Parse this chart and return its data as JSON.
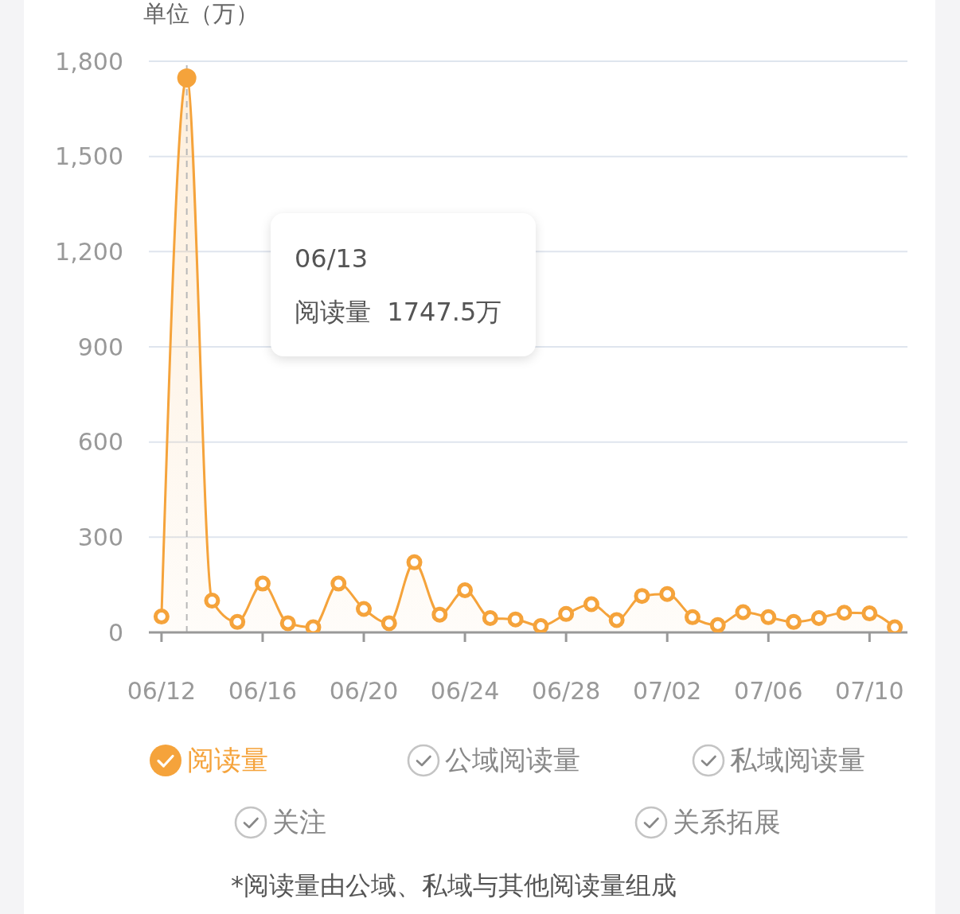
{
  "chart_data": {
    "type": "area",
    "ylabel": "单位（万）",
    "x": [
      "--06-12",
      "--06-13",
      "--06-14",
      "--06-15",
      "--06-16",
      "--06-17",
      "--06-18",
      "--06-19",
      "--06-20",
      "--06-21",
      "--06-22",
      "--06-23",
      "--06-24",
      "--06-25",
      "--06-26",
      "--06-27",
      "--06-28",
      "--06-29",
      "--06-30",
      "--07-01",
      "--07-02",
      "--07-03",
      "--07-04",
      "--07-05",
      "--07-06",
      "--07-07",
      "--07-08",
      "--07-09",
      "--07-10",
      "--07-11"
    ],
    "series": [
      {
        "name": "阅读量",
        "color": "#f5a33b",
        "values": [
          50,
          1747.5,
          100,
          33,
          154,
          29,
          16,
          154,
          74,
          29,
          221,
          56,
          133,
          45,
          41,
          20,
          58,
          89,
          39,
          115,
          121,
          48,
          23,
          64,
          48,
          33,
          45,
          62,
          60,
          16
        ]
      },
      {
        "name": "公域阅读量",
        "values": [
          null,
          null,
          null,
          null,
          null,
          null,
          null,
          null,
          null,
          null,
          null,
          null,
          null,
          null,
          null,
          null,
          null,
          null,
          null,
          null,
          null,
          null,
          null,
          null,
          null,
          null,
          null,
          null,
          null,
          null
        ]
      },
      {
        "name": "私域阅读量",
        "values": [
          null,
          null,
          null,
          null,
          null,
          null,
          null,
          null,
          null,
          null,
          null,
          null,
          null,
          null,
          null,
          null,
          null,
          null,
          null,
          null,
          null,
          null,
          null,
          null,
          null,
          null,
          null,
          null,
          null,
          null
        ]
      },
      {
        "name": "关注",
        "values": [
          null,
          null,
          null,
          null,
          null,
          null,
          null,
          null,
          null,
          null,
          null,
          null,
          null,
          null,
          null,
          null,
          null,
          null,
          null,
          null,
          null,
          null,
          null,
          null,
          null,
          null,
          null,
          null,
          null,
          null
        ]
      },
      {
        "name": "关系拓展",
        "values": [
          null,
          null,
          null,
          null,
          null,
          null,
          null,
          null,
          null,
          null,
          null,
          null,
          null,
          null,
          null,
          null,
          null,
          null,
          null,
          null,
          null,
          null,
          null,
          null,
          null,
          null,
          null,
          null,
          null,
          null
        ]
      }
    ],
    "xlim": [
      "--06-11T12:00",
      "--07-11T12:00"
    ],
    "xticks": [
      {
        "value": "--06-12",
        "label": "06/12"
      },
      {
        "value": "--06-16",
        "label": "06/16"
      },
      {
        "value": "--06-20",
        "label": "06/20"
      },
      {
        "value": "--06-24",
        "label": "06/24"
      },
      {
        "value": "--06-28",
        "label": "06/28"
      },
      {
        "value": "--07-02",
        "label": "07/02"
      },
      {
        "value": "--07-06",
        "label": "07/06"
      },
      {
        "value": "--07-10",
        "label": "07/10"
      }
    ],
    "ylim": [
      0,
      1800
    ],
    "yticks": [
      0,
      300,
      600,
      900,
      {
        "value": 1200,
        "label": "1,200"
      },
      {
        "value": 1500,
        "label": "1,500"
      },
      {
        "value": 1800,
        "label": "1,800"
      }
    ],
    "grid": "y",
    "legend": "bottom",
    "marker": "circle",
    "ref_lines": [
      {
        "axis": "x",
        "value": "--06-13",
        "color": "#b8b8b8",
        "line_style": "dashed"
      }
    ],
    "annotations": [
      "06/13\n阅读量  1747.5万",
      "*阅读量由公域、私域与其他阅读量组成"
    ]
  }
}
